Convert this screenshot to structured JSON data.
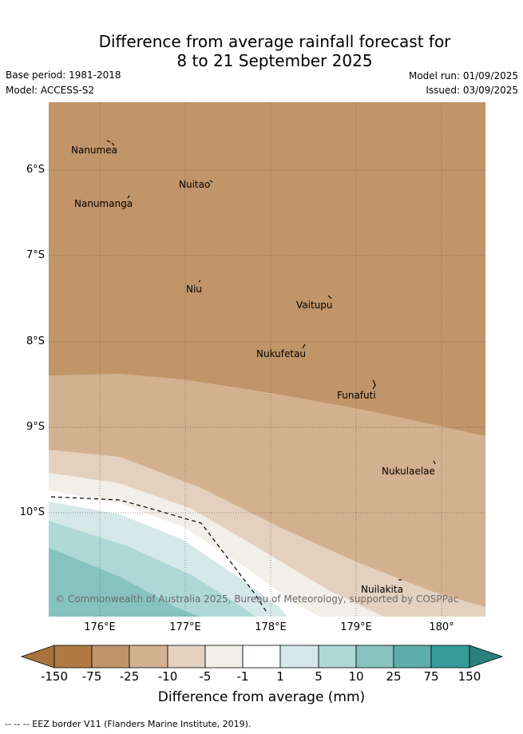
{
  "title_line1": "Difference from average rainfall forecast for",
  "title_line2": "8 to 21 September 2025",
  "base_period": "Base period: 1981-2018",
  "model": "Model: ACCESS-S2",
  "model_run": "Model run: 01/09/2025",
  "issued": "Issued: 03/09/2025",
  "lat_labels": [
    "6°S",
    "7°S",
    "8°S",
    "9°S",
    "10°S"
  ],
  "lon_labels": [
    "176°E",
    "177°E",
    "178°E",
    "179°E",
    "180°"
  ],
  "places": [
    "Nanumea",
    "Nuitao",
    "Nanumanga",
    "Niu",
    "Vaitupu",
    "Nukufetau",
    "Funafuti",
    "Nukulaelae",
    "Nuilakita"
  ],
  "copyright": "© Commonwealth of Australia 2025, Bureau of Meteorology, supported by COSPPac",
  "colorbar": {
    "label": "Difference from average (mm)",
    "ticks": [
      "-150",
      "-75",
      "-25",
      "-10",
      "-5",
      "-1",
      "1",
      "5",
      "10",
      "25",
      "75",
      "150"
    ],
    "colors": [
      "#a8733d",
      "#b07a44",
      "#c19469",
      "#d3b08f",
      "#e4d0bf",
      "#f2eee8",
      "#ffffff",
      "#d5e9e8",
      "#add8d6",
      "#86c2c0",
      "#5dadab",
      "#369b99",
      "#2b7f7e"
    ]
  },
  "footnote": "--  --  -- EEZ border V11 (Flanders Marine Institute, 2019)."
}
